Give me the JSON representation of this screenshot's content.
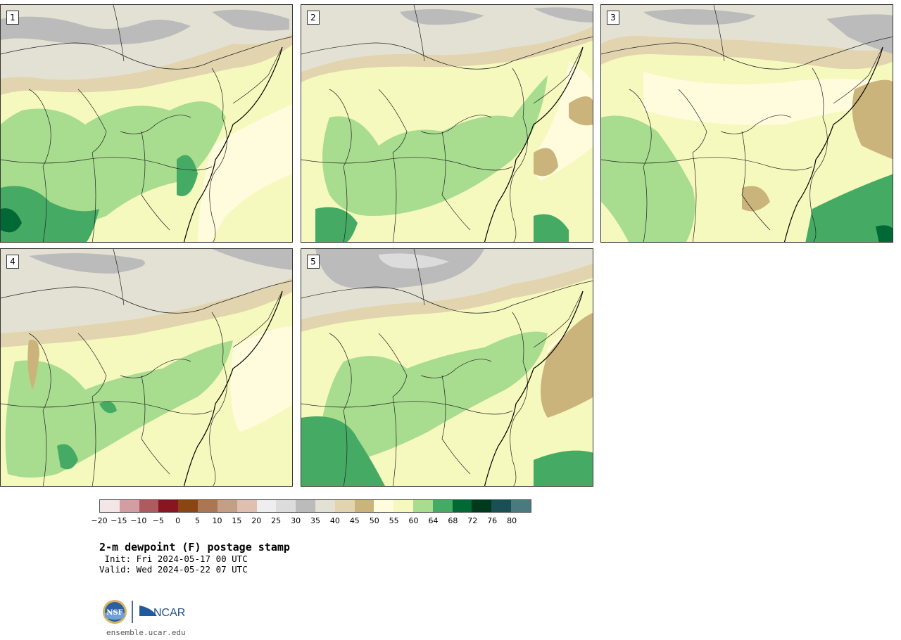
{
  "panels": [
    {
      "label": "1",
      "variant": 0
    },
    {
      "label": "2",
      "variant": 1
    },
    {
      "label": "3",
      "variant": 2
    },
    {
      "label": "4",
      "variant": 3
    },
    {
      "label": "5",
      "variant": 4
    }
  ],
  "colorbar": {
    "colors": [
      "#f4e6e6",
      "#d29ea1",
      "#ad5b5f",
      "#891520",
      "#8a4514",
      "#aa7653",
      "#c59f85",
      "#debfb0",
      "#eeeeee",
      "#dcdcdc",
      "#bbbbbb",
      "#e2e1d4",
      "#e2d4ae",
      "#cbb47b",
      "#fffbdd",
      "#f6f9bd",
      "#a8dc8f",
      "#45ab64",
      "#006935",
      "#003a1d",
      "#1a4f55",
      "#4a7a7e"
    ],
    "ticks": [
      "−20",
      "−15",
      "−10",
      "−5",
      "0",
      "5",
      "10",
      "15",
      "20",
      "25",
      "30",
      "35",
      "40",
      "45",
      "50",
      "55",
      "60",
      "64",
      "68",
      "72",
      "76",
      "80"
    ]
  },
  "title": "2-m dewpoint (F) postage stamp",
  "init": " Init: Fri 2024-05-17 00 UTC",
  "valid": "Valid: Wed 2024-05-22 07 UTC",
  "logo": {
    "nsf": "NSF",
    "ncar": "NCAR",
    "url": "ensemble.ucar.edu"
  }
}
